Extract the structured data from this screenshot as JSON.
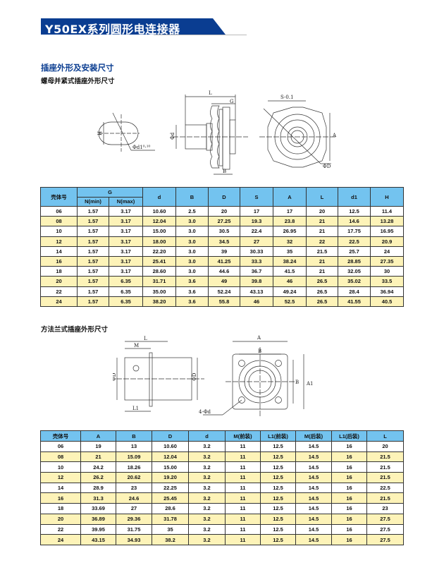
{
  "header": {
    "title": "Y50EX系列圆形电连接器",
    "brand_color": "#0a3d91"
  },
  "section_title": "插座外形及安装尺寸",
  "figure1": {
    "subtitle": "螺母并紧式插座外形尺寸",
    "labels": {
      "H": "H",
      "d1": "Φd1⁰·¹⁰",
      "L": "L",
      "G": "G",
      "d": "Φd",
      "B": "B",
      "S": "S-0.1",
      "A": "A",
      "D": "ΦD"
    }
  },
  "table1": {
    "headers": {
      "shell": "壳体号",
      "G": "G",
      "Nmin": "N(min)",
      "Nmax": "N(max)",
      "cols": [
        "d",
        "B",
        "D",
        "S",
        "A",
        "L",
        "d1",
        "H"
      ]
    },
    "rows": [
      [
        "06",
        "1.57",
        "3.17",
        "10.60",
        "2.5",
        "20",
        "17",
        "17",
        "20",
        "12.5",
        "11.4"
      ],
      [
        "08",
        "1.57",
        "3.17",
        "12.04",
        "3.0",
        "27.25",
        "19.3",
        "23.8",
        "21",
        "14.6",
        "13.28"
      ],
      [
        "10",
        "1.57",
        "3.17",
        "15.00",
        "3.0",
        "30.5",
        "22.4",
        "26.95",
        "21",
        "17.75",
        "16.95"
      ],
      [
        "12",
        "1.57",
        "3.17",
        "18.00",
        "3.0",
        "34.5",
        "27",
        "32",
        "22",
        "22.5",
        "20.9"
      ],
      [
        "14",
        "1.57",
        "3.17",
        "22.20",
        "3.0",
        "39",
        "30.33",
        "35",
        "21.5",
        "25.7",
        "24"
      ],
      [
        "16",
        "1.57",
        "3.17",
        "25.41",
        "3.0",
        "41.25",
        "33.3",
        "38.24",
        "21",
        "28.85",
        "27.35"
      ],
      [
        "18",
        "1.57",
        "3.17",
        "28.60",
        "3.0",
        "44.6",
        "36.7",
        "41.5",
        "21",
        "32.05",
        "30"
      ],
      [
        "20",
        "1.57",
        "6.35",
        "31.71",
        "3.6",
        "49",
        "39.8",
        "46",
        "26.5",
        "35.02",
        "33.5"
      ],
      [
        "22",
        "1.57",
        "6.35",
        "35.00",
        "3.6",
        "52.24",
        "43.13",
        "49.24",
        "26.5",
        "28.4",
        "36.94"
      ],
      [
        "24",
        "1.57",
        "6.35",
        "38.20",
        "3.6",
        "55.8",
        "46",
        "52.5",
        "26.5",
        "41.55",
        "40.5"
      ]
    ]
  },
  "figure2": {
    "subtitle": "方法兰式插座外形尺寸",
    "labels": {
      "L": "L",
      "M": "M",
      "D": "ΦD",
      "L1": "L1",
      "A": "A",
      "B": "B",
      "A1": "A1",
      "hole": "4-Φd"
    }
  },
  "table2": {
    "headers": [
      "壳体号",
      "A",
      "B",
      "D",
      "d",
      "M(前装)",
      "L1(前装)",
      "M(后装)",
      "L1(后装)",
      "L"
    ],
    "rows": [
      [
        "06",
        "19",
        "13",
        "10.60",
        "3.2",
        "11",
        "12.5",
        "14.5",
        "16",
        "20"
      ],
      [
        "08",
        "21",
        "15.09",
        "12.04",
        "3.2",
        "11",
        "12.5",
        "14.5",
        "16",
        "21.5"
      ],
      [
        "10",
        "24.2",
        "18.26",
        "15.00",
        "3.2",
        "11",
        "12.5",
        "14.5",
        "16",
        "21.5"
      ],
      [
        "12",
        "26.2",
        "20.62",
        "19.20",
        "3.2",
        "11",
        "12.5",
        "14.5",
        "16",
        "21.5"
      ],
      [
        "14",
        "28.9",
        "23",
        "22.25",
        "3.2",
        "11",
        "12.5",
        "14.5",
        "16",
        "22.5"
      ],
      [
        "16",
        "31.3",
        "24.6",
        "25.45",
        "3.2",
        "11",
        "12.5",
        "14.5",
        "16",
        "21.5"
      ],
      [
        "18",
        "33.69",
        "27",
        "28.6",
        "3.2",
        "11",
        "12.5",
        "14.5",
        "16",
        "23"
      ],
      [
        "20",
        "36.89",
        "29.36",
        "31.78",
        "3.2",
        "11",
        "12.5",
        "14.5",
        "16",
        "27.5"
      ],
      [
        "22",
        "39.95",
        "31.75",
        "35",
        "3.2",
        "11",
        "12.5",
        "14.5",
        "16",
        "27.5"
      ],
      [
        "24",
        "43.15",
        "34.93",
        "38.2",
        "3.2",
        "11",
        "12.5",
        "14.5",
        "16",
        "27.5"
      ]
    ]
  }
}
